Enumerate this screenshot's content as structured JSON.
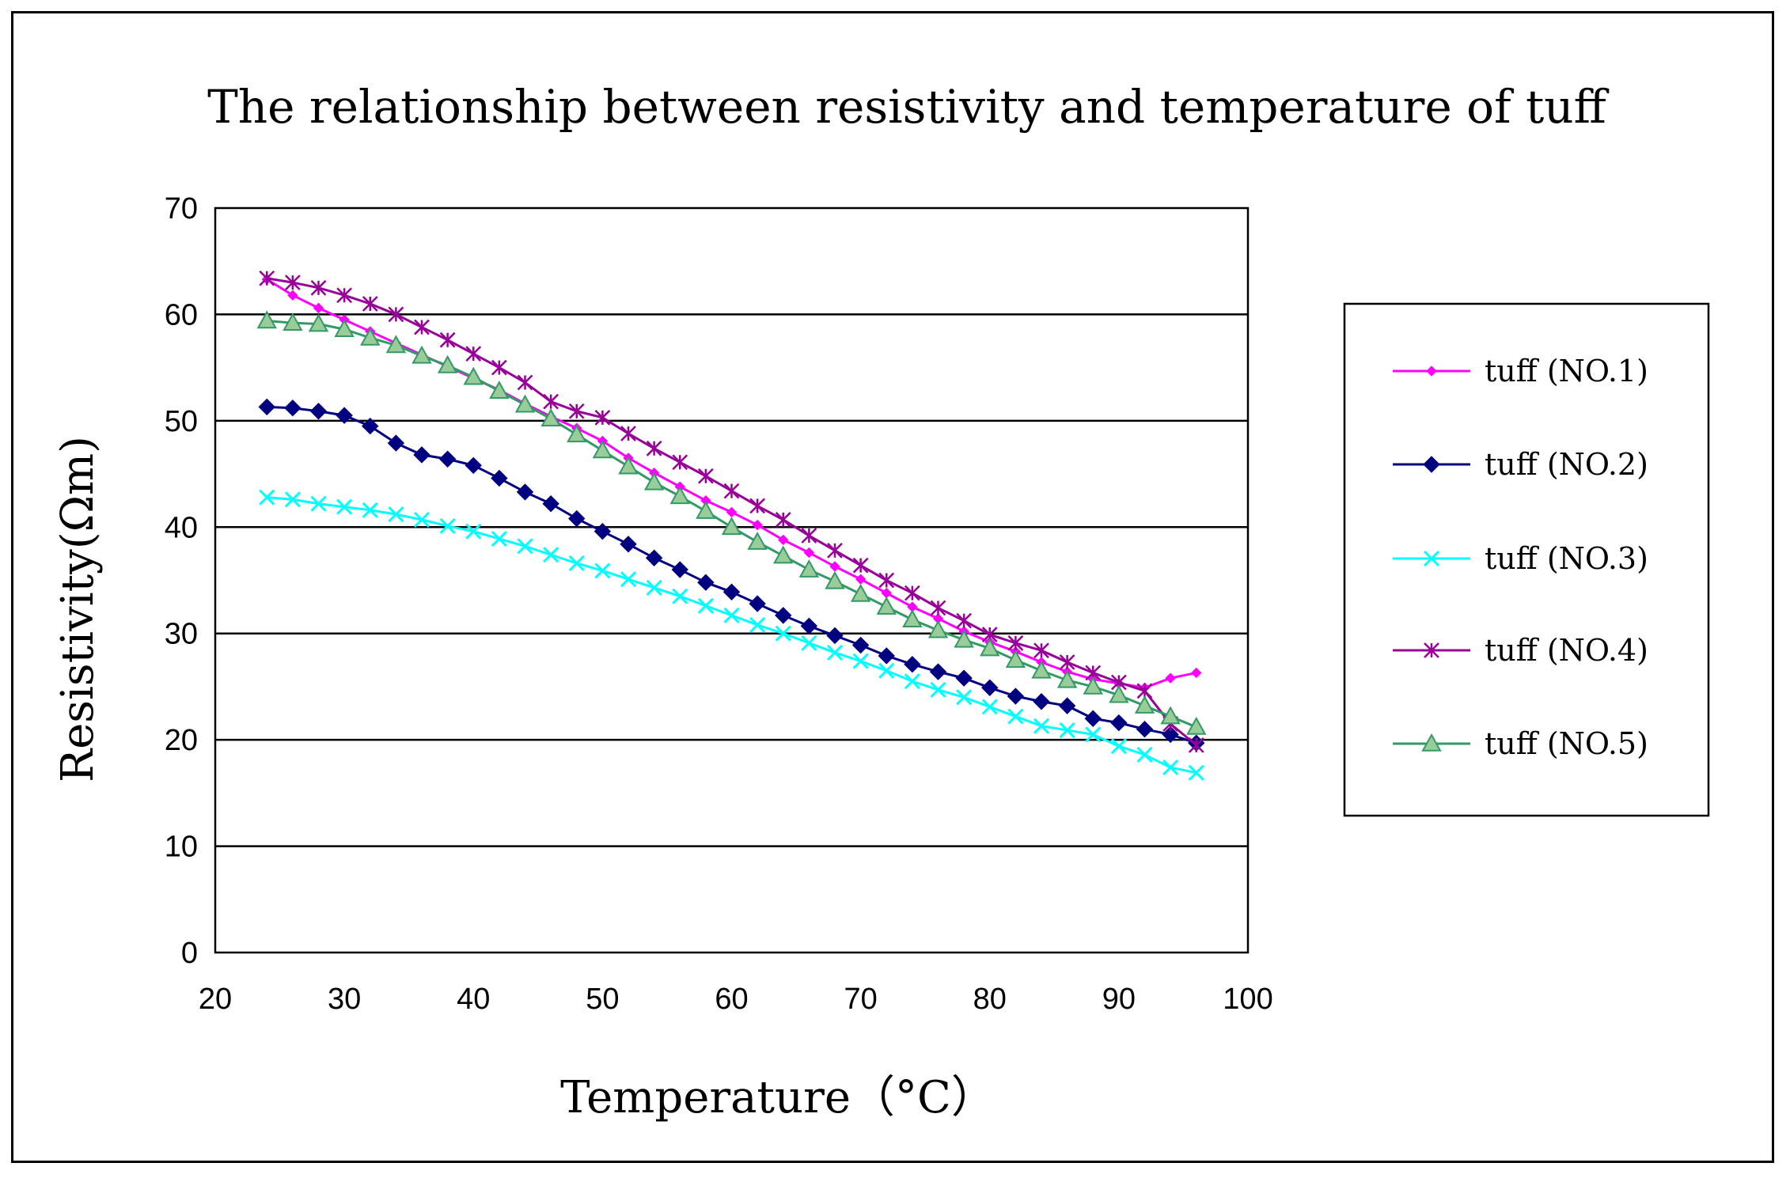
{
  "chart_data": {
    "type": "line",
    "title": "The relationship between resistivity and temperature of tuff",
    "xlabel": "Temperature（°C）",
    "ylabel": "Resistivity(Ωm)",
    "xlim": [
      20,
      100
    ],
    "ylim": [
      0,
      70
    ],
    "xticks": [
      20,
      30,
      40,
      50,
      60,
      70,
      80,
      90,
      100
    ],
    "yticks": [
      0,
      10,
      20,
      30,
      40,
      50,
      60,
      70
    ],
    "grid": "horizontal",
    "legend_position": "right",
    "x": [
      24,
      26,
      28,
      30,
      32,
      34,
      36,
      38,
      40,
      42,
      44,
      46,
      48,
      50,
      52,
      54,
      56,
      58,
      60,
      62,
      64,
      66,
      68,
      70,
      72,
      74,
      76,
      78,
      80,
      82,
      84,
      86,
      88,
      90,
      92,
      94,
      96
    ],
    "series": [
      {
        "name": "tuff (NO.1)",
        "color": "#ff00ff",
        "marker": "diamond-small",
        "values": [
          63.3,
          61.8,
          60.6,
          59.5,
          58.4,
          57.3,
          56.2,
          55.1,
          54.0,
          52.9,
          51.6,
          50.4,
          49.3,
          48.1,
          46.5,
          45.1,
          43.8,
          42.5,
          41.4,
          40.2,
          38.8,
          37.6,
          36.3,
          35.1,
          33.8,
          32.5,
          31.4,
          30.2,
          29.2,
          28.3,
          27.3,
          26.4,
          25.7,
          25.3,
          24.9,
          25.8,
          26.3
        ]
      },
      {
        "name": "tuff (NO.2)",
        "color": "#000080",
        "marker": "diamond",
        "values": [
          51.3,
          51.2,
          50.9,
          50.5,
          49.5,
          47.9,
          46.8,
          46.4,
          45.8,
          44.6,
          43.3,
          42.2,
          40.8,
          39.6,
          38.4,
          37.1,
          36.0,
          34.8,
          33.9,
          32.8,
          31.7,
          30.7,
          29.8,
          28.9,
          27.9,
          27.1,
          26.4,
          25.8,
          24.9,
          24.1,
          23.6,
          23.2,
          22.0,
          21.6,
          21.0,
          20.5,
          19.7
        ]
      },
      {
        "name": "tuff (NO.3)",
        "color": "#00ffff",
        "marker": "x",
        "values": [
          42.8,
          42.6,
          42.2,
          41.9,
          41.6,
          41.2,
          40.7,
          40.1,
          39.6,
          38.9,
          38.2,
          37.4,
          36.6,
          35.9,
          35.1,
          34.3,
          33.5,
          32.6,
          31.7,
          30.8,
          30.0,
          29.1,
          28.2,
          27.4,
          26.5,
          25.5,
          24.7,
          24.0,
          23.1,
          22.2,
          21.3,
          20.9,
          20.5,
          19.4,
          18.6,
          17.4,
          16.9
        ]
      },
      {
        "name": "tuff (NO.4)",
        "color": "#990099",
        "marker": "star",
        "values": [
          63.4,
          63.0,
          62.5,
          61.8,
          61.0,
          60.0,
          58.8,
          57.6,
          56.3,
          55.0,
          53.6,
          51.8,
          50.9,
          50.3,
          48.8,
          47.4,
          46.1,
          44.8,
          43.4,
          42.0,
          40.7,
          39.2,
          37.8,
          36.4,
          35.0,
          33.8,
          32.4,
          31.2,
          29.9,
          29.1,
          28.4,
          27.3,
          26.3,
          25.4,
          24.6,
          21.5,
          19.5
        ]
      },
      {
        "name": "tuff (NO.5)",
        "color": "#339966",
        "marker": "triangle",
        "values": [
          59.4,
          59.2,
          59.1,
          58.6,
          57.8,
          57.1,
          56.1,
          55.2,
          54.1,
          52.8,
          51.5,
          50.2,
          48.7,
          47.2,
          45.7,
          44.2,
          42.9,
          41.5,
          40.0,
          38.6,
          37.3,
          36.0,
          34.9,
          33.7,
          32.5,
          31.3,
          30.3,
          29.4,
          28.6,
          27.5,
          26.5,
          25.6,
          25.0,
          24.2,
          23.2,
          22.2,
          21.2
        ]
      }
    ]
  }
}
